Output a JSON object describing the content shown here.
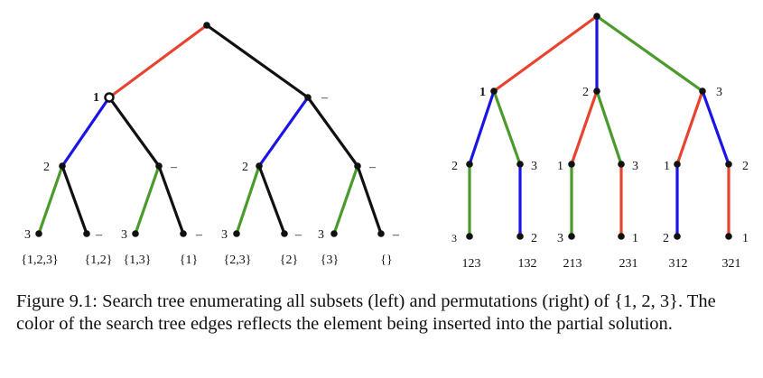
{
  "caption": "Figure 9.1: Search tree enumerating all subsets (left) and permutations (right) of {1, 2, 3}. The color of the search tree edges reflects the element being inserted into the partial solution.",
  "colors": {
    "element_1": "#e8432f",
    "element_2": "#1a14e6",
    "element_3": "#4a9a2c",
    "excluded": "#111111",
    "node": "#111111"
  },
  "subset_tree": {
    "node_labels": {
      "l1_in": "1",
      "l1_out": "–",
      "l2_a": "2",
      "l2_b": "–",
      "l2_c": "2",
      "l2_d": "–",
      "l3_a": "3",
      "l3_b": "–",
      "l3_c": "3",
      "l3_d": "–",
      "l3_e": "3",
      "l3_f": "–",
      "l3_g": "3",
      "l3_h": "–"
    },
    "leaf_sets": [
      "{1,2,3}",
      "{1,2}",
      "{1,3}",
      "{1}",
      "{2,3}",
      "{2}",
      "{3}",
      "{}"
    ]
  },
  "permutation_tree": {
    "node_labels": {
      "l1_a": "1",
      "l1_b": "2",
      "l1_c": "3",
      "l2_a": "2",
      "l2_b": "3",
      "l2_c": "1",
      "l2_d": "3",
      "l2_e": "1",
      "l2_f": "2",
      "l3_a": "3",
      "l3_b": "2",
      "l3_c": "3",
      "l3_d": "1",
      "l3_e": "2",
      "l3_f": "1"
    },
    "leaf_perms": [
      "123",
      "132",
      "213",
      "231",
      "312",
      "321"
    ]
  }
}
